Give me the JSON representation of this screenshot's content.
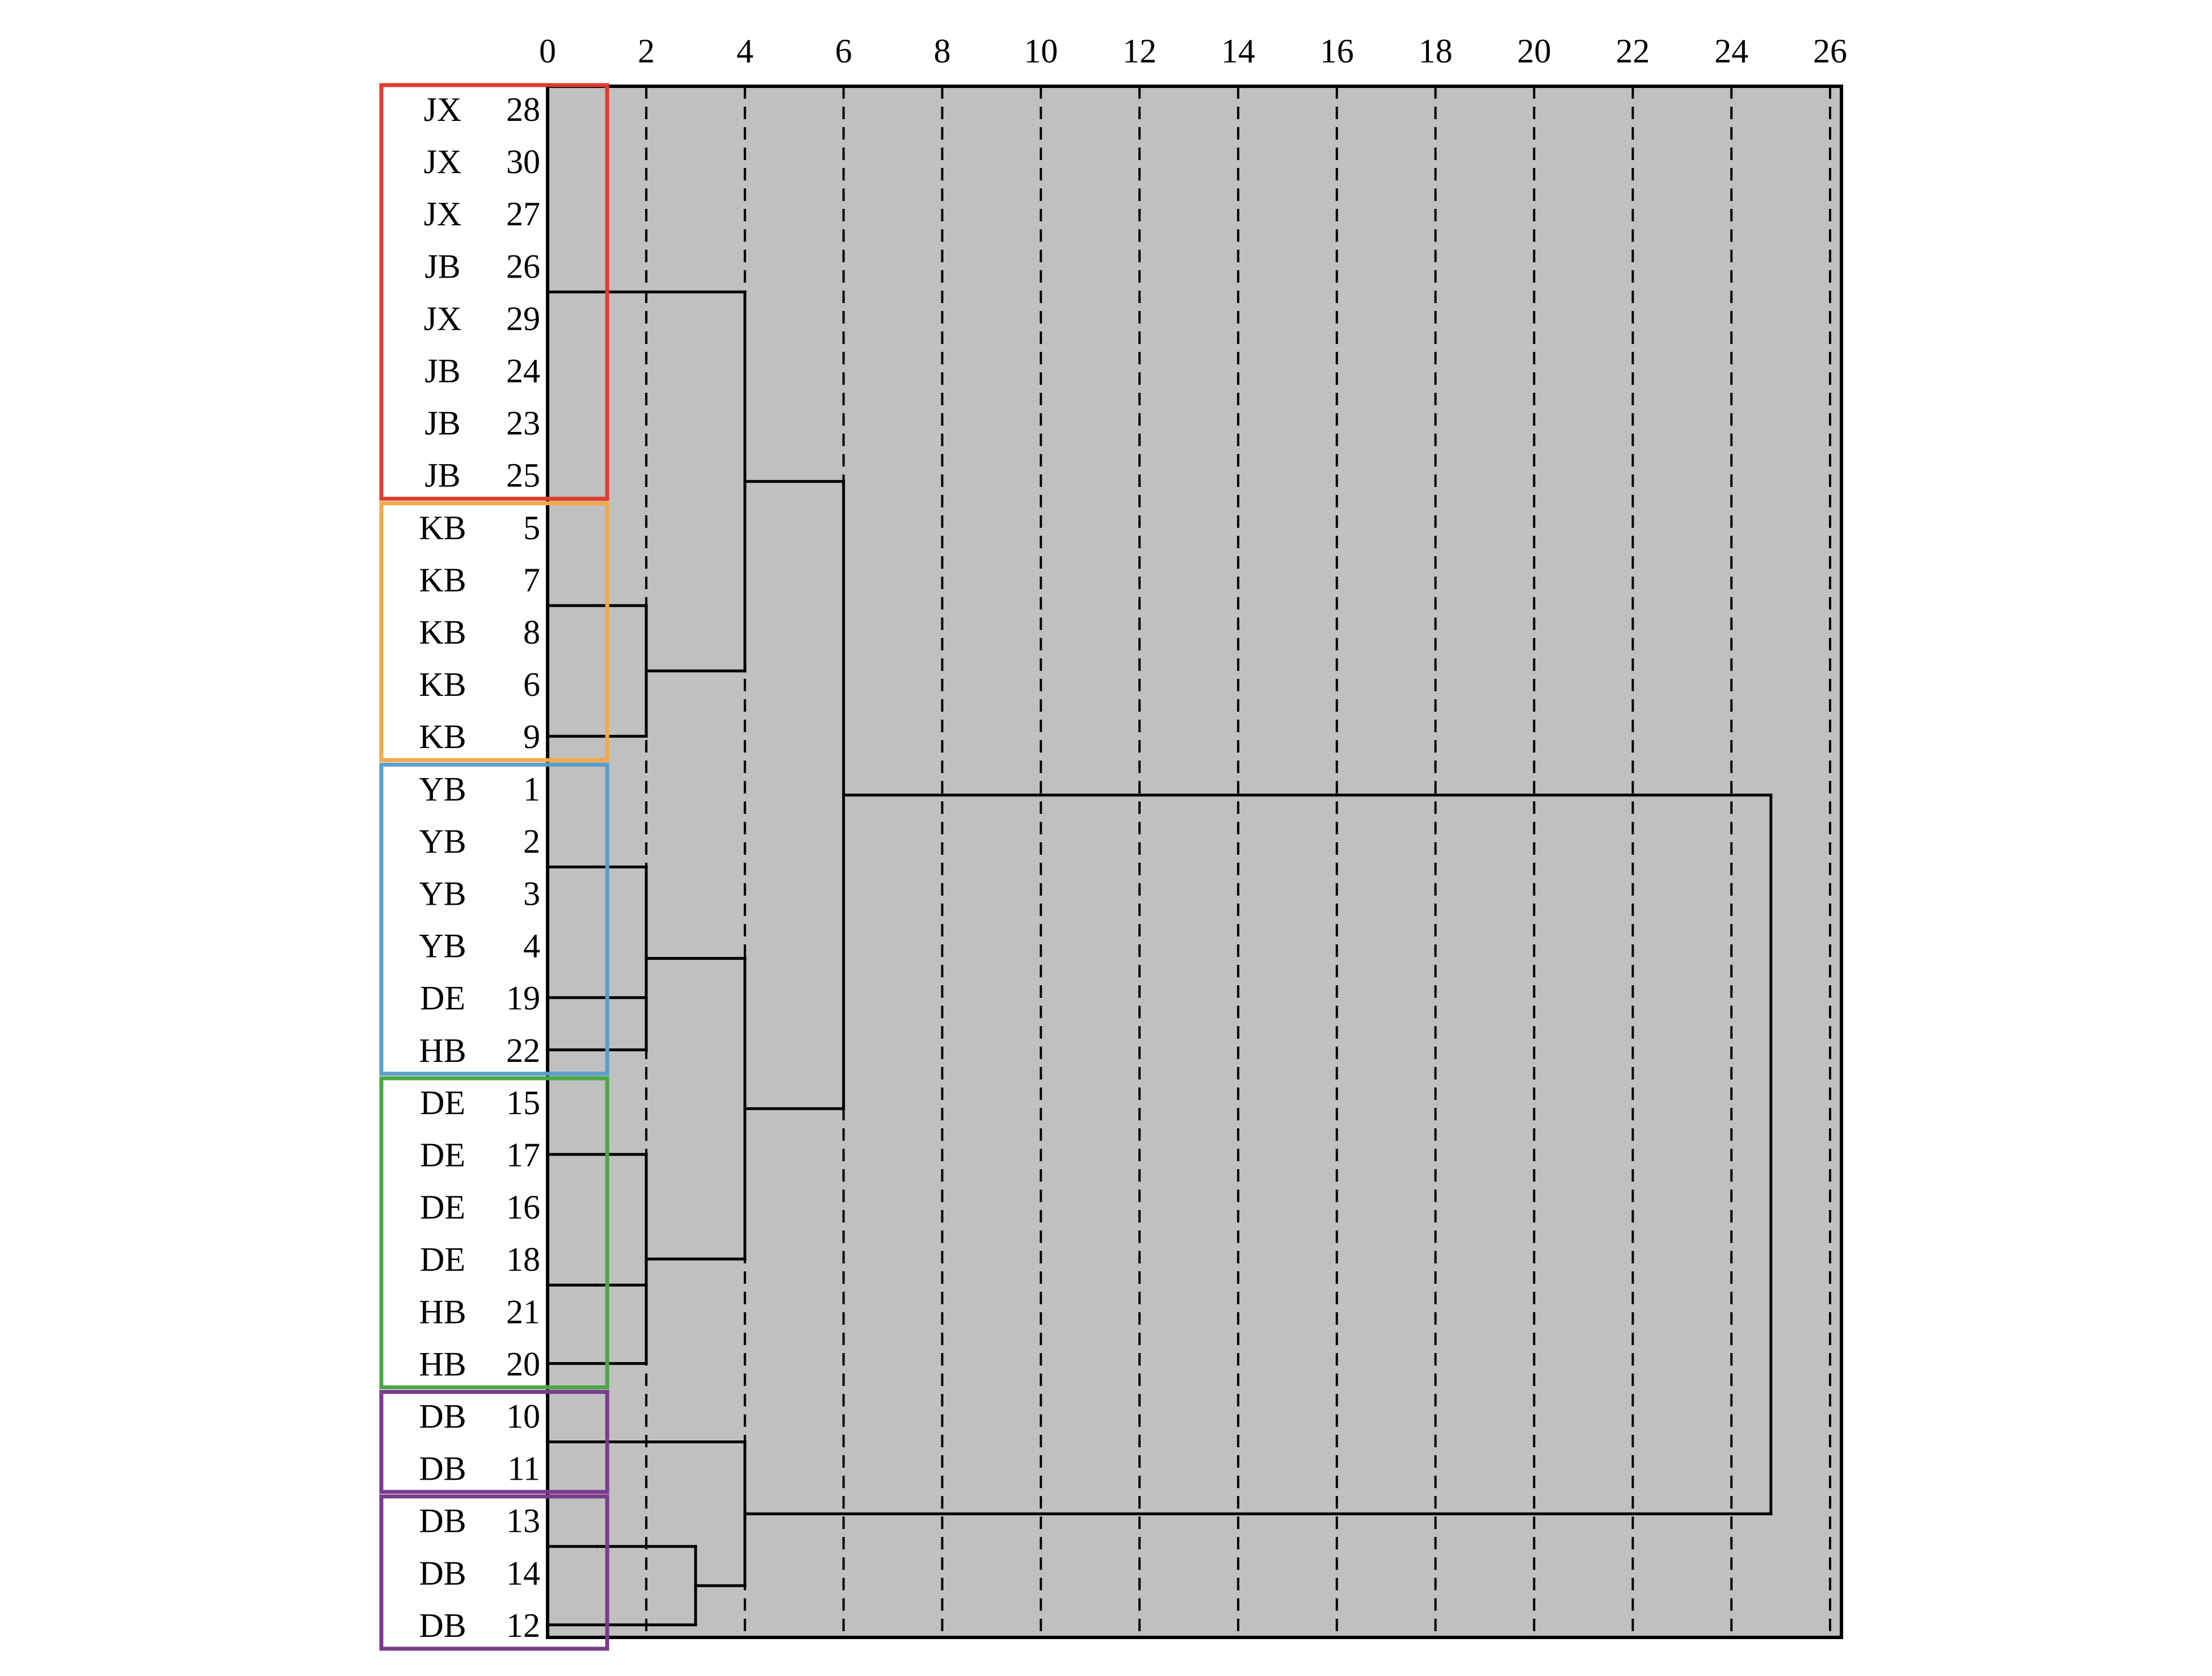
{
  "chart_data": {
    "type": "dendrogram",
    "orientation": "horizontal",
    "xlim": [
      0,
      26
    ],
    "ticks": [
      "0",
      "2",
      "4",
      "6",
      "8",
      "10",
      "12",
      "14",
      "16",
      "18",
      "20",
      "22",
      "24",
      "26"
    ],
    "grid": "vertical dashed lines at every tick",
    "plot_background": "#c0c0c0",
    "leaves": [
      {
        "label": "JX",
        "id": "28"
      },
      {
        "label": "JX",
        "id": "30"
      },
      {
        "label": "JX",
        "id": "27"
      },
      {
        "label": "JB",
        "id": "26"
      },
      {
        "label": "JX",
        "id": "29"
      },
      {
        "label": "JB",
        "id": "24"
      },
      {
        "label": "JB",
        "id": "23"
      },
      {
        "label": "JB",
        "id": "25"
      },
      {
        "label": "KB",
        "id": "5"
      },
      {
        "label": "KB",
        "id": "7"
      },
      {
        "label": "KB",
        "id": "8"
      },
      {
        "label": "KB",
        "id": "6"
      },
      {
        "label": "KB",
        "id": "9"
      },
      {
        "label": "YB",
        "id": "1"
      },
      {
        "label": "YB",
        "id": "2"
      },
      {
        "label": "YB",
        "id": "3"
      },
      {
        "label": "YB",
        "id": "4"
      },
      {
        "label": "DE",
        "id": "19"
      },
      {
        "label": "HB",
        "id": "22"
      },
      {
        "label": "DE",
        "id": "15"
      },
      {
        "label": "DE",
        "id": "17"
      },
      {
        "label": "DE",
        "id": "16"
      },
      {
        "label": "DE",
        "id": "18"
      },
      {
        "label": "HB",
        "id": "21"
      },
      {
        "label": "HB",
        "id": "20"
      },
      {
        "label": "DB",
        "id": "10"
      },
      {
        "label": "DB",
        "id": "11"
      },
      {
        "label": "DB",
        "id": "13"
      },
      {
        "label": "DB",
        "id": "14"
      },
      {
        "label": "DB",
        "id": "12"
      }
    ],
    "merges": [
      {
        "children": [
          [
            0,
            7
          ]
        ],
        "height": 1
      },
      {
        "children": [
          [
            8,
            11
          ]
        ],
        "height": 1
      },
      {
        "children": [
          [
            13,
            16
          ]
        ],
        "height": 1
      },
      {
        "children": [
          [
            19,
            21
          ]
        ],
        "height": 1
      },
      {
        "children": [
          [
            22,
            23
          ]
        ],
        "height": 1
      },
      {
        "children": [
          [
            25,
            26
          ]
        ],
        "height": 1
      },
      {
        "children": [
          [
            27,
            28
          ]
        ],
        "height": 1
      },
      {
        "children": [
          [
            8,
            11
          ],
          [
            12,
            12
          ]
        ],
        "height": 2
      },
      {
        "children": [
          [
            13,
            16
          ],
          [
            17,
            17
          ],
          [
            18,
            18
          ]
        ],
        "height": 2
      },
      {
        "children": [
          [
            19,
            21
          ],
          [
            22,
            23
          ],
          [
            24,
            24
          ]
        ],
        "height": 2
      },
      {
        "children": [
          [
            27,
            28
          ],
          [
            29,
            29
          ]
        ],
        "height": 3
      },
      {
        "children": [
          [
            0,
            7
          ],
          [
            8,
            12
          ]
        ],
        "height": 4
      },
      {
        "children": [
          [
            13,
            18
          ],
          [
            19,
            24
          ]
        ],
        "height": 4
      },
      {
        "children": [
          [
            25,
            26
          ],
          [
            27,
            29
          ]
        ],
        "height": 4
      },
      {
        "children": [
          [
            0,
            12
          ],
          [
            13,
            24
          ]
        ],
        "height": 6
      },
      {
        "children": [
          [
            0,
            24
          ],
          [
            25,
            29
          ]
        ],
        "height": 24.8
      }
    ],
    "groups": [
      {
        "from": 0,
        "to": 7,
        "color": "#e03c31"
      },
      {
        "from": 8,
        "to": 12,
        "color": "#f0aa4a"
      },
      {
        "from": 13,
        "to": 18,
        "color": "#5a9ec9"
      },
      {
        "from": 19,
        "to": 24,
        "color": "#4ca64a"
      },
      {
        "from": 25,
        "to": 26,
        "color": "#7a3c8a"
      },
      {
        "from": 27,
        "to": 29,
        "color": "#7a3c8a"
      }
    ]
  }
}
